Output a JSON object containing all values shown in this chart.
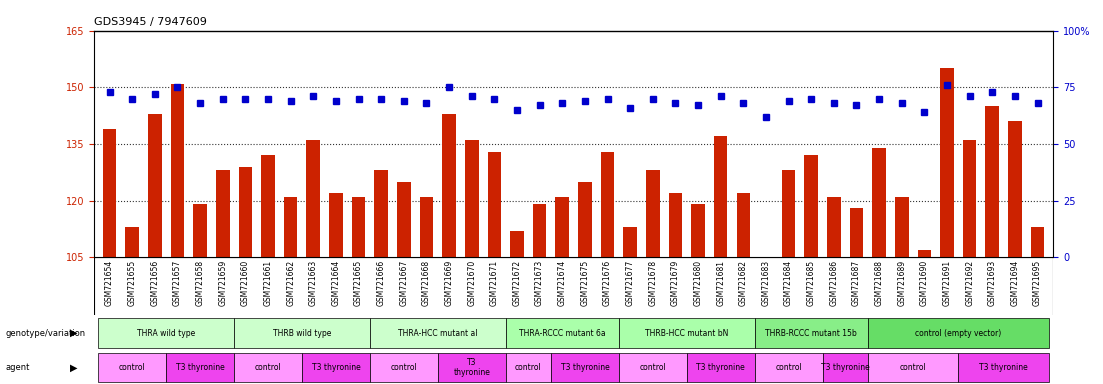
{
  "title": "GDS3945 / 7947609",
  "samples": [
    "GSM721654",
    "GSM721655",
    "GSM721656",
    "GSM721657",
    "GSM721658",
    "GSM721659",
    "GSM721660",
    "GSM721661",
    "GSM721662",
    "GSM721663",
    "GSM721664",
    "GSM721665",
    "GSM721666",
    "GSM721667",
    "GSM721668",
    "GSM721669",
    "GSM721670",
    "GSM721671",
    "GSM721672",
    "GSM721673",
    "GSM721674",
    "GSM721675",
    "GSM721676",
    "GSM721677",
    "GSM721678",
    "GSM721679",
    "GSM721680",
    "GSM721681",
    "GSM721682",
    "GSM721683",
    "GSM721684",
    "GSM721685",
    "GSM721686",
    "GSM721687",
    "GSM721688",
    "GSM721689",
    "GSM721690",
    "GSM721691",
    "GSM721692",
    "GSM721693",
    "GSM721694",
    "GSM721695"
  ],
  "counts": [
    139,
    113,
    143,
    151,
    119,
    128,
    129,
    132,
    121,
    136,
    122,
    121,
    128,
    125,
    121,
    143,
    136,
    133,
    112,
    119,
    121,
    125,
    133,
    113,
    128,
    122,
    119,
    137,
    122,
    105,
    128,
    132,
    121,
    118,
    134,
    121,
    107,
    155,
    136,
    145,
    141,
    113
  ],
  "percentiles": [
    73,
    70,
    72,
    75,
    68,
    70,
    70,
    70,
    69,
    71,
    69,
    70,
    70,
    69,
    68,
    75,
    71,
    70,
    65,
    67,
    68,
    69,
    70,
    66,
    70,
    68,
    67,
    71,
    68,
    62,
    69,
    70,
    68,
    67,
    70,
    68,
    64,
    76,
    71,
    73,
    71,
    68
  ],
  "ylim_left": [
    105,
    165
  ],
  "ylim_right": [
    0,
    100
  ],
  "yticks_left": [
    105,
    120,
    135,
    150,
    165
  ],
  "yticks_right": [
    0,
    25,
    50,
    75,
    100
  ],
  "bar_color": "#cc2200",
  "dot_color": "#0000cc",
  "genotype_groups": [
    {
      "label": "THRA wild type",
      "start": 0,
      "end": 5,
      "color": "#ccffcc"
    },
    {
      "label": "THRB wild type",
      "start": 6,
      "end": 11,
      "color": "#ccffcc"
    },
    {
      "label": "THRA-HCC mutant al",
      "start": 12,
      "end": 17,
      "color": "#ccffcc"
    },
    {
      "label": "THRA-RCCC mutant 6a",
      "start": 18,
      "end": 22,
      "color": "#aaffaa"
    },
    {
      "label": "THRB-HCC mutant bN",
      "start": 23,
      "end": 28,
      "color": "#aaffaa"
    },
    {
      "label": "THRB-RCCC mutant 15b",
      "start": 29,
      "end": 33,
      "color": "#88ee88"
    },
    {
      "label": "control (empty vector)",
      "start": 34,
      "end": 41,
      "color": "#66dd66"
    }
  ],
  "agent_groups": [
    {
      "label": "control",
      "start": 0,
      "end": 2,
      "color": "#ff99ff"
    },
    {
      "label": "T3 thyronine",
      "start": 3,
      "end": 5,
      "color": "#ee44ee"
    },
    {
      "label": "control",
      "start": 6,
      "end": 8,
      "color": "#ff99ff"
    },
    {
      "label": "T3 thyronine",
      "start": 9,
      "end": 11,
      "color": "#ee44ee"
    },
    {
      "label": "control",
      "start": 12,
      "end": 14,
      "color": "#ff99ff"
    },
    {
      "label": "T3\nthyronine",
      "start": 15,
      "end": 17,
      "color": "#ee44ee"
    },
    {
      "label": "control",
      "start": 18,
      "end": 19,
      "color": "#ff99ff"
    },
    {
      "label": "T3 thyronine",
      "start": 20,
      "end": 22,
      "color": "#ee44ee"
    },
    {
      "label": "control",
      "start": 23,
      "end": 25,
      "color": "#ff99ff"
    },
    {
      "label": "T3 thyronine",
      "start": 26,
      "end": 28,
      "color": "#ee44ee"
    },
    {
      "label": "control",
      "start": 29,
      "end": 31,
      "color": "#ff99ff"
    },
    {
      "label": "T3 thyronine",
      "start": 32,
      "end": 33,
      "color": "#ee44ee"
    },
    {
      "label": "control",
      "start": 34,
      "end": 37,
      "color": "#ff99ff"
    },
    {
      "label": "T3 thyronine",
      "start": 38,
      "end": 41,
      "color": "#ee44ee"
    }
  ],
  "hline_values": [
    120,
    135,
    150
  ],
  "hline_style": "dotted",
  "hline_color": "#333333"
}
